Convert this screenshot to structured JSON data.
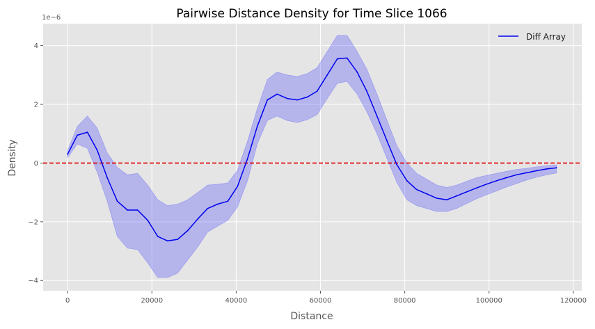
{
  "chart_data": {
    "type": "line",
    "title": "Pairwise Distance Density for Time Slice 1066",
    "xlabel": "Distance",
    "ylabel": "Density",
    "y_offset_text": "1e−6",
    "y_scale_exponent": -6,
    "xlim": [
      -5800,
      122000
    ],
    "ylim": [
      -4.35,
      4.75
    ],
    "x_ticks": [
      0,
      20000,
      40000,
      60000,
      80000,
      100000,
      120000
    ],
    "x_tick_labels": [
      "0",
      "20000",
      "40000",
      "60000",
      "80000",
      "100000",
      "120000"
    ],
    "y_ticks": [
      -4,
      -2,
      0,
      2,
      4
    ],
    "y_tick_labels": [
      "−4",
      "−2",
      "0",
      "2",
      "4"
    ],
    "grid": true,
    "legend_position": "top-right",
    "reference_line": {
      "y": 0,
      "style": "dashed",
      "color": "#dd0000"
    },
    "series": [
      {
        "name": "Diff Array",
        "color": "#0000ee",
        "band_color": "#3b3bff",
        "points": [
          [
            0,
            0.3,
            0.18,
            0.42
          ],
          [
            2300,
            0.95,
            0.65,
            1.25
          ],
          [
            4700,
            1.05,
            0.5,
            1.6
          ],
          [
            7000,
            0.45,
            -0.3,
            1.2
          ],
          [
            9400,
            -0.5,
            -1.3,
            0.35
          ],
          [
            11800,
            -1.3,
            -2.5,
            -0.15
          ],
          [
            14200,
            -1.6,
            -2.9,
            -0.4
          ],
          [
            16600,
            -1.6,
            -2.95,
            -0.35
          ],
          [
            19000,
            -1.95,
            -3.4,
            -0.75
          ],
          [
            21400,
            -2.5,
            -3.9,
            -1.25
          ],
          [
            23700,
            -2.65,
            -3.9,
            -1.45
          ],
          [
            26100,
            -2.6,
            -3.75,
            -1.4
          ],
          [
            28500,
            -2.3,
            -3.3,
            -1.25
          ],
          [
            30900,
            -1.9,
            -2.85,
            -1.0
          ],
          [
            33200,
            -1.55,
            -2.35,
            -0.75
          ],
          [
            35600,
            -1.4,
            -2.15,
            -0.72
          ],
          [
            38000,
            -1.3,
            -1.95,
            -0.68
          ],
          [
            40300,
            -0.8,
            -1.5,
            -0.25
          ],
          [
            42700,
            0.15,
            -0.6,
            0.75
          ],
          [
            45000,
            1.25,
            0.65,
            1.85
          ],
          [
            47400,
            2.15,
            1.45,
            2.85
          ],
          [
            49700,
            2.35,
            1.6,
            3.1
          ],
          [
            52100,
            2.2,
            1.45,
            3.0
          ],
          [
            54500,
            2.15,
            1.38,
            2.95
          ],
          [
            56900,
            2.25,
            1.48,
            3.05
          ],
          [
            59200,
            2.45,
            1.65,
            3.25
          ],
          [
            61600,
            3.0,
            2.2,
            3.8
          ],
          [
            64000,
            3.55,
            2.72,
            4.35
          ],
          [
            66300,
            3.58,
            2.78,
            4.35
          ],
          [
            68700,
            3.1,
            2.35,
            3.8
          ],
          [
            71000,
            2.45,
            1.75,
            3.2
          ],
          [
            73400,
            1.6,
            1.0,
            2.35
          ],
          [
            75800,
            0.75,
            0.15,
            1.45
          ],
          [
            78100,
            -0.05,
            -0.65,
            0.6
          ],
          [
            80500,
            -0.6,
            -1.25,
            0.0
          ],
          [
            82800,
            -0.9,
            -1.45,
            -0.35
          ],
          [
            85200,
            -1.05,
            -1.55,
            -0.55
          ],
          [
            87600,
            -1.2,
            -1.65,
            -0.75
          ],
          [
            90000,
            -1.25,
            -1.65,
            -0.83
          ],
          [
            92300,
            -1.12,
            -1.55,
            -0.75
          ],
          [
            94700,
            -0.98,
            -1.38,
            -0.62
          ],
          [
            97000,
            -0.85,
            -1.22,
            -0.5
          ],
          [
            99400,
            -0.72,
            -1.08,
            -0.42
          ],
          [
            101800,
            -0.6,
            -0.95,
            -0.35
          ],
          [
            104100,
            -0.5,
            -0.82,
            -0.28
          ],
          [
            106500,
            -0.4,
            -0.7,
            -0.22
          ],
          [
            108900,
            -0.33,
            -0.58,
            -0.18
          ],
          [
            111300,
            -0.26,
            -0.48,
            -0.13
          ],
          [
            113700,
            -0.2,
            -0.4,
            -0.09
          ],
          [
            116000,
            -0.16,
            -0.34,
            -0.06
          ]
        ]
      }
    ]
  }
}
